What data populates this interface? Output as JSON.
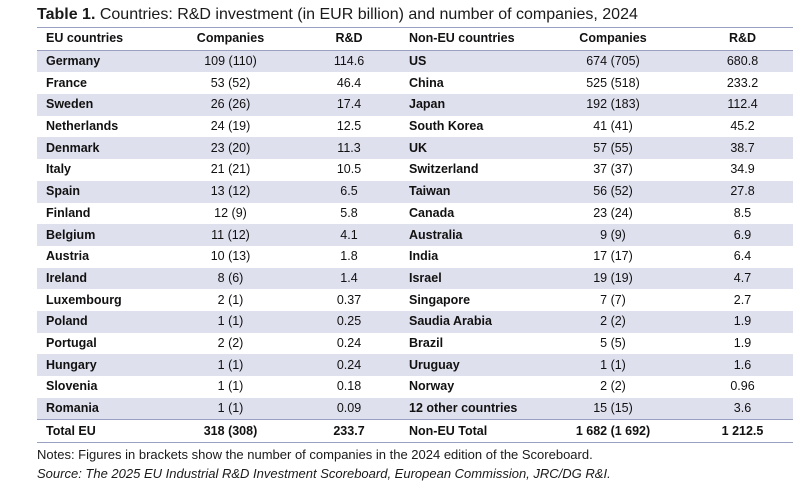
{
  "caption": {
    "label": "Table 1.",
    "text": " Countries: R&D investment (in EUR billion) and number of companies, 2024"
  },
  "headers": {
    "eu_countries": "EU countries",
    "eu_companies": "Companies",
    "eu_rd": "R&D",
    "non_eu_countries": "Non-EU countries",
    "non_eu_companies": "Companies",
    "non_eu_rd": "R&D"
  },
  "rows": [
    {
      "eu_country": "Germany",
      "eu_companies": "109 (110)",
      "eu_rd": "114.6",
      "non_eu_country": "US",
      "non_eu_companies": "674 (705)",
      "non_eu_rd": "680.8"
    },
    {
      "eu_country": "France",
      "eu_companies": "53 (52)",
      "eu_rd": "46.4",
      "non_eu_country": "China",
      "non_eu_companies": "525 (518)",
      "non_eu_rd": "233.2"
    },
    {
      "eu_country": "Sweden",
      "eu_companies": "26 (26)",
      "eu_rd": "17.4",
      "non_eu_country": "Japan",
      "non_eu_companies": "192 (183)",
      "non_eu_rd": "112.4"
    },
    {
      "eu_country": "Netherlands",
      "eu_companies": "24 (19)",
      "eu_rd": "12.5",
      "non_eu_country": "South Korea",
      "non_eu_companies": "41 (41)",
      "non_eu_rd": "45.2"
    },
    {
      "eu_country": "Denmark",
      "eu_companies": "23 (20)",
      "eu_rd": "11.3",
      "non_eu_country": "UK",
      "non_eu_companies": "57 (55)",
      "non_eu_rd": "38.7"
    },
    {
      "eu_country": "Italy",
      "eu_companies": "21 (21)",
      "eu_rd": "10.5",
      "non_eu_country": "Switzerland",
      "non_eu_companies": "37 (37)",
      "non_eu_rd": "34.9"
    },
    {
      "eu_country": "Spain",
      "eu_companies": "13 (12)",
      "eu_rd": "6.5",
      "non_eu_country": "Taiwan",
      "non_eu_companies": "56 (52)",
      "non_eu_rd": "27.8"
    },
    {
      "eu_country": "Finland",
      "eu_companies": "12 (9)",
      "eu_rd": "5.8",
      "non_eu_country": "Canada",
      "non_eu_companies": "23 (24)",
      "non_eu_rd": "8.5"
    },
    {
      "eu_country": "Belgium",
      "eu_companies": "11 (12)",
      "eu_rd": "4.1",
      "non_eu_country": "Australia",
      "non_eu_companies": "9 (9)",
      "non_eu_rd": "6.9"
    },
    {
      "eu_country": "Austria",
      "eu_companies": "10 (13)",
      "eu_rd": "1.8",
      "non_eu_country": "India",
      "non_eu_companies": "17 (17)",
      "non_eu_rd": "6.4"
    },
    {
      "eu_country": "Ireland",
      "eu_companies": "8 (6)",
      "eu_rd": "1.4",
      "non_eu_country": "Israel",
      "non_eu_companies": "19 (19)",
      "non_eu_rd": "4.7"
    },
    {
      "eu_country": "Luxembourg",
      "eu_companies": "2 (1)",
      "eu_rd": "0.37",
      "non_eu_country": "Singapore",
      "non_eu_companies": "7 (7)",
      "non_eu_rd": "2.7"
    },
    {
      "eu_country": "Poland",
      "eu_companies": "1 (1)",
      "eu_rd": "0.25",
      "non_eu_country": "Saudia Arabia",
      "non_eu_companies": "2 (2)",
      "non_eu_rd": "1.9"
    },
    {
      "eu_country": "Portugal",
      "eu_companies": "2 (2)",
      "eu_rd": "0.24",
      "non_eu_country": "Brazil",
      "non_eu_companies": "5 (5)",
      "non_eu_rd": "1.9"
    },
    {
      "eu_country": "Hungary",
      "eu_companies": "1 (1)",
      "eu_rd": "0.24",
      "non_eu_country": "Uruguay",
      "non_eu_companies": "1 (1)",
      "non_eu_rd": "1.6"
    },
    {
      "eu_country": "Slovenia",
      "eu_companies": "1 (1)",
      "eu_rd": "0.18",
      "non_eu_country": "Norway",
      "non_eu_companies": "2 (2)",
      "non_eu_rd": "0.96"
    },
    {
      "eu_country": "Romania",
      "eu_companies": "1 (1)",
      "eu_rd": "0.09",
      "non_eu_country": "12 other countries",
      "non_eu_companies": "15 (15)",
      "non_eu_rd": "3.6"
    }
  ],
  "totals": {
    "eu_label": "Total EU",
    "eu_companies": "318 (308)",
    "eu_rd": "233.7",
    "non_eu_label": "Non-EU Total",
    "non_eu_companies": "1 682 (1 692)",
    "non_eu_rd": "1 212.5"
  },
  "notes": {
    "note": "Notes: Figures in brackets show the number of companies in the 2024 edition of the Scoreboard.",
    "source": "Source: The 2025 EU Industrial R&D Investment Scoreboard, European Commission, JRC/DG R&I."
  },
  "colors": {
    "row_shade": "#dfe0ee",
    "rule": "#9aa0c2"
  }
}
